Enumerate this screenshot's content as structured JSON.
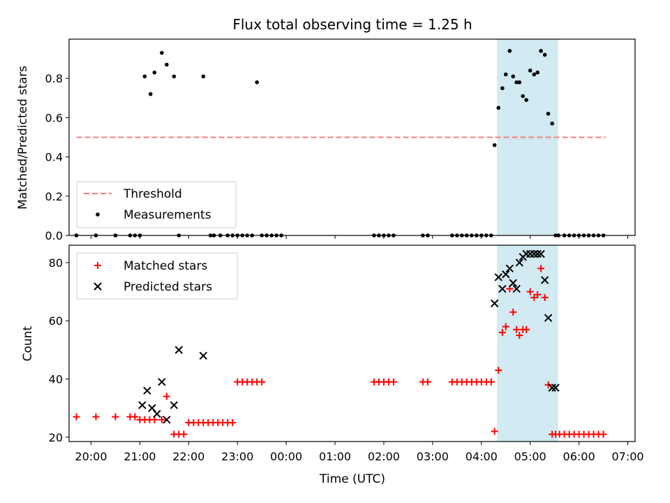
{
  "chart_data": {
    "type": "scatter",
    "title": "Flux total observing time = 1.25 h",
    "xlabel": "Time (UTC)",
    "x_unit": "hours since 00:00 UTC (negative = previous evening)",
    "xlim": [
      -4.45,
      7.15
    ],
    "x_ticks": [
      -4,
      -3,
      -2,
      -1,
      0,
      1,
      2,
      3,
      4,
      5,
      6,
      7
    ],
    "x_tick_labels": [
      "20:00",
      "21:00",
      "22:00",
      "23:00",
      "00:00",
      "01:00",
      "02:00",
      "03:00",
      "04:00",
      "05:00",
      "06:00",
      "07:00"
    ],
    "shaded_interval": {
      "x_start": 4.32,
      "x_end": 5.57,
      "color": "#add8e6"
    },
    "top_panel": {
      "ylabel": "Matched/Predicted stars",
      "ylim": [
        0,
        1.0
      ],
      "y_ticks": [
        0.0,
        0.2,
        0.4,
        0.6,
        0.8
      ],
      "y_tick_labels": [
        "0.0",
        "0.2",
        "0.4",
        "0.6",
        "0.8"
      ],
      "legend_position": "lower-left",
      "threshold": {
        "name": "Threshold",
        "value": 0.5,
        "x_range": [
          -4.3,
          6.55
        ],
        "color": "#f08080"
      },
      "measurements": {
        "name": "Measurements",
        "color": "#000000",
        "x": [
          -4.3,
          -3.9,
          -3.5,
          -3.2,
          -3.1,
          -3.0,
          -2.9,
          -2.78,
          -2.7,
          -2.55,
          -2.45,
          -2.3,
          -2.2,
          -1.7,
          -1.55,
          -1.48,
          -1.35,
          -1.2,
          -1.1,
          -1.0,
          -0.9,
          -0.8,
          -0.7,
          -0.6,
          -0.5,
          -0.4,
          -0.3,
          -0.2,
          -0.1,
          1.8,
          1.9,
          2.0,
          2.1,
          2.2,
          2.8,
          2.9,
          3.4,
          3.5,
          3.6,
          3.7,
          3.8,
          3.9,
          4.0,
          4.1,
          4.2,
          4.27,
          4.35,
          4.43,
          4.5,
          4.58,
          4.65,
          4.72,
          4.78,
          4.85,
          4.92,
          5.0,
          5.08,
          5.15,
          5.22,
          5.3,
          5.37,
          5.45,
          5.52,
          5.58,
          5.7,
          5.8,
          5.9,
          6.0,
          6.1,
          6.2,
          6.3,
          6.4,
          6.5
        ],
        "y": [
          0.0,
          0.0,
          0.0,
          0.0,
          0.0,
          0.0,
          0.81,
          0.72,
          0.83,
          0.93,
          0.87,
          0.81,
          0.0,
          0.81,
          0.0,
          0.0,
          0.0,
          0.0,
          0.0,
          0.0,
          0.0,
          0.0,
          0.0,
          0.78,
          0.0,
          0.0,
          0.0,
          0.0,
          0.0,
          0.0,
          0.0,
          0.0,
          0.0,
          0.0,
          0.0,
          0.0,
          0.0,
          0.0,
          0.0,
          0.0,
          0.0,
          0.0,
          0.0,
          0.0,
          0.0,
          0.46,
          0.65,
          0.75,
          0.82,
          0.94,
          0.81,
          0.78,
          0.78,
          0.71,
          0.69,
          0.84,
          0.82,
          0.83,
          0.94,
          0.92,
          0.62,
          0.57,
          0.0,
          0.0,
          0.0,
          0.0,
          0.0,
          0.0,
          0.0,
          0.0,
          0.0,
          0.0,
          0.0
        ]
      }
    },
    "bottom_panel": {
      "ylabel": "Count",
      "ylim": [
        18.5,
        86
      ],
      "y_ticks": [
        20,
        40,
        60,
        80
      ],
      "y_tick_labels": [
        "20",
        "40",
        "60",
        "80"
      ],
      "legend_position": "upper-left",
      "series": [
        {
          "name": "Matched stars",
          "marker": "plus",
          "color": "#ff0000",
          "x": [
            -4.3,
            -3.9,
            -3.5,
            -3.2,
            -3.1,
            -3.0,
            -2.9,
            -2.8,
            -2.7,
            -2.55,
            -2.45,
            -2.3,
            -2.2,
            -2.1,
            -2.0,
            -1.9,
            -1.8,
            -1.7,
            -1.6,
            -1.5,
            -1.4,
            -1.3,
            -1.2,
            -1.1,
            -1.0,
            -0.9,
            -0.8,
            -0.7,
            -0.6,
            -0.5,
            1.8,
            1.9,
            2.0,
            2.1,
            2.2,
            2.8,
            2.9,
            3.4,
            3.5,
            3.6,
            3.7,
            3.8,
            3.9,
            4.0,
            4.1,
            4.2,
            4.27,
            4.35,
            4.43,
            4.5,
            4.58,
            4.65,
            4.72,
            4.78,
            4.85,
            4.92,
            5.0,
            5.08,
            5.15,
            5.22,
            5.3,
            5.37,
            5.45,
            5.52,
            5.6,
            5.7,
            5.8,
            5.9,
            6.0,
            6.1,
            6.2,
            6.3,
            6.4,
            6.5
          ],
          "y": [
            27,
            27,
            27,
            27,
            27,
            26,
            26,
            26,
            26,
            26,
            34,
            21,
            21,
            21,
            25,
            25,
            25,
            25,
            25,
            25,
            25,
            25,
            25,
            25,
            39,
            39,
            39,
            39,
            39,
            39,
            39,
            39,
            39,
            39,
            39,
            39,
            39,
            39,
            39,
            39,
            39,
            39,
            39,
            39,
            39,
            39,
            22,
            43,
            56,
            58,
            71,
            63,
            57,
            55,
            57,
            57,
            70,
            68,
            69,
            78,
            68,
            38,
            21,
            21,
            21,
            21,
            21,
            21,
            21,
            21,
            21,
            21,
            21,
            21
          ]
        },
        {
          "name": "Predicted stars",
          "marker": "x",
          "color": "#000000",
          "x": [
            -2.95,
            -2.85,
            -2.75,
            -2.65,
            -2.55,
            -2.45,
            -2.3,
            -2.2,
            -1.7,
            4.27,
            4.35,
            4.43,
            4.5,
            4.58,
            4.65,
            4.72,
            4.78,
            4.85,
            4.92,
            5.0,
            5.08,
            5.15,
            5.22,
            5.3,
            5.37,
            5.45,
            5.52
          ],
          "y": [
            31,
            36,
            30,
            28,
            39,
            26,
            31,
            50,
            48,
            66,
            75,
            71,
            76,
            78,
            73,
            71,
            80,
            82,
            83,
            83,
            83,
            83,
            83,
            74,
            61,
            37,
            37
          ]
        }
      ]
    }
  }
}
